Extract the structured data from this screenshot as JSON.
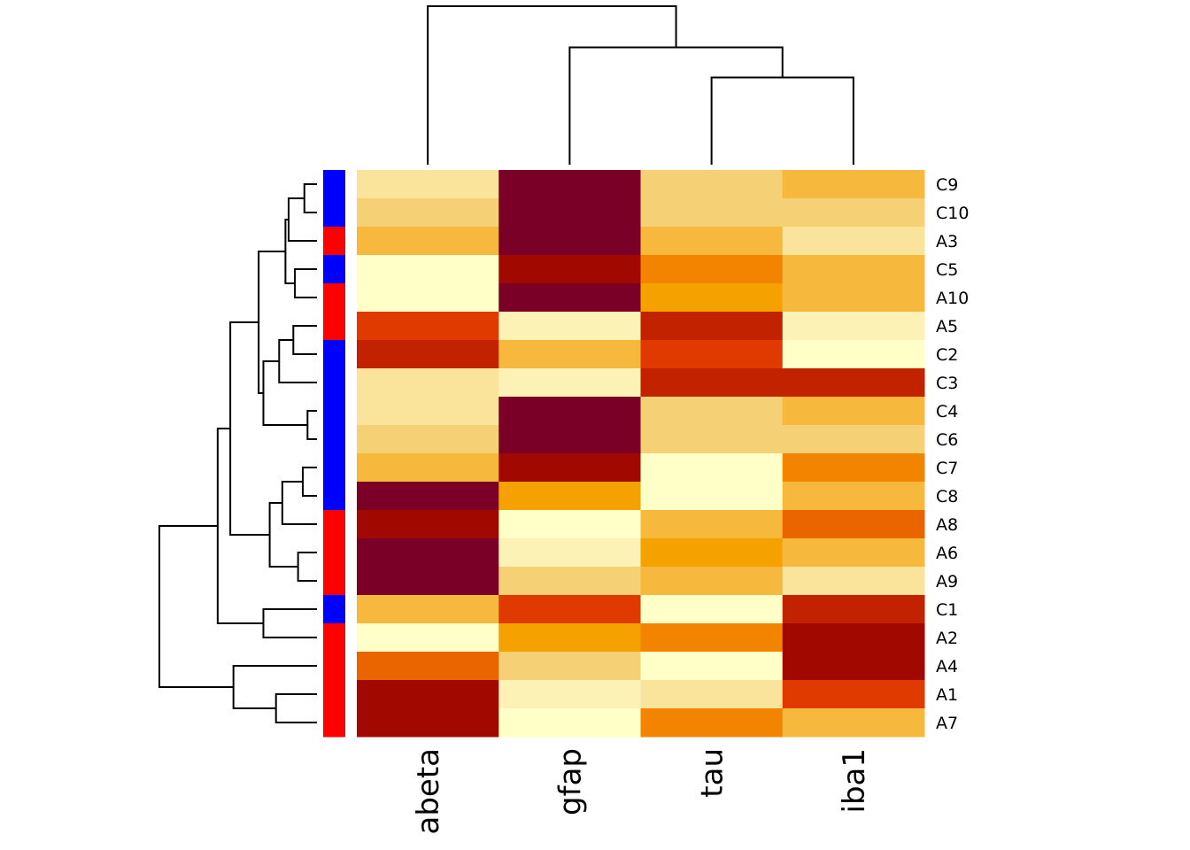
{
  "chart_data": {
    "type": "heatmap",
    "title": "",
    "palette_name": "heat colors (dark red = low level index, light yellow = high level index)",
    "palette": [
      "#7B0028",
      "#A00800",
      "#C22200",
      "#E03A00",
      "#EA6400",
      "#F28400",
      "#F5A200",
      "#F6B83D",
      "#F6D075",
      "#FAE39A",
      "#FDF2B5",
      "#FFFFC8"
    ],
    "columns": [
      "abeta",
      "gfap",
      "tau",
      "iba1"
    ],
    "rows": [
      "C9",
      "C10",
      "A3",
      "C5",
      "A10",
      "A5",
      "C2",
      "C3",
      "C4",
      "C6",
      "C7",
      "C8",
      "A8",
      "A6",
      "A9",
      "C1",
      "A2",
      "A4",
      "A1",
      "A7"
    ],
    "row_groups": [
      "C",
      "C",
      "A",
      "C",
      "A",
      "A",
      "C",
      "C",
      "C",
      "C",
      "C",
      "C",
      "A",
      "A",
      "A",
      "C",
      "A",
      "A",
      "A",
      "A"
    ],
    "group_colors": {
      "C": "#0000FF",
      "A": "#FF0000"
    },
    "values_level": [
      [
        10,
        1,
        9,
        8
      ],
      [
        9,
        1,
        9,
        9
      ],
      [
        8,
        1,
        8,
        10
      ],
      [
        12,
        2,
        6,
        8
      ],
      [
        12,
        1,
        7,
        8
      ],
      [
        4,
        11,
        3,
        11
      ],
      [
        3,
        8,
        4,
        12
      ],
      [
        10,
        11,
        3,
        3
      ],
      [
        10,
        1,
        9,
        8
      ],
      [
        9,
        1,
        9,
        9
      ],
      [
        8,
        2,
        12,
        6
      ],
      [
        1,
        7,
        12,
        8
      ],
      [
        2,
        12,
        8,
        5
      ],
      [
        1,
        11,
        7,
        8
      ],
      [
        1,
        9,
        8,
        10
      ],
      [
        8,
        4,
        12,
        3
      ],
      [
        12,
        7,
        6,
        2
      ],
      [
        5,
        9,
        12,
        2
      ],
      [
        2,
        11,
        10,
        4
      ],
      [
        2,
        12,
        6,
        8
      ]
    ],
    "col_dendrogram": {
      "merges": [
        {
          "left": "tau",
          "right": "iba1",
          "height": 0.55
        },
        {
          "left": "gfap",
          "right": [
            "tau",
            "iba1"
          ],
          "height": 0.74
        },
        {
          "left": "abeta",
          "right": [
            "gfap",
            "tau",
            "iba1"
          ],
          "height": 1.0
        }
      ]
    },
    "row_dendrogram": {
      "merges": [
        {
          "members": [
            "C9",
            "C10"
          ],
          "height": 0.08
        },
        {
          "members": [
            "C9",
            "C10",
            "A3"
          ],
          "height": 0.18
        },
        {
          "members": [
            "C5",
            "A10"
          ],
          "height": 0.14
        },
        {
          "members": [
            "C9",
            "C10",
            "A3",
            "C5",
            "A10"
          ],
          "height": 0.2
        },
        {
          "members": [
            "A5",
            "C2"
          ],
          "height": 0.15
        },
        {
          "members": [
            "A5",
            "C2",
            "C3"
          ],
          "height": 0.24
        },
        {
          "members": [
            "C4",
            "C6"
          ],
          "height": 0.06
        },
        {
          "members": [
            "A5",
            "C2",
            "C3",
            "C4",
            "C6"
          ],
          "height": 0.34
        },
        {
          "members": [
            "C9",
            "C10",
            "A3",
            "C5",
            "A10",
            "A5",
            "C2",
            "C3",
            "C4",
            "C6"
          ],
          "height": 0.37
        },
        {
          "members": [
            "C7",
            "C8"
          ],
          "height": 0.09
        },
        {
          "members": [
            "C7",
            "C8",
            "A8"
          ],
          "height": 0.22
        },
        {
          "members": [
            "A6",
            "A9"
          ],
          "height": 0.12
        },
        {
          "members": [
            "C7",
            "C8",
            "A8",
            "A6",
            "A9"
          ],
          "height": 0.3
        },
        {
          "members": [
            "C9",
            "C10",
            "A3",
            "C5",
            "A10",
            "A5",
            "C2",
            "C3",
            "C4",
            "C6",
            "C7",
            "C8",
            "A8",
            "A6",
            "A9"
          ],
          "height": 0.55
        },
        {
          "members": [
            "C1",
            "A2"
          ],
          "height": 0.34
        },
        {
          "members": [
            "C9",
            "C10",
            "A3",
            "C5",
            "A10",
            "A5",
            "C2",
            "C3",
            "C4",
            "C6",
            "C7",
            "C8",
            "A8",
            "A6",
            "A9",
            "C1",
            "A2"
          ],
          "height": 0.63
        },
        {
          "members": [
            "A1",
            "A7"
          ],
          "height": 0.26
        },
        {
          "members": [
            "A4",
            "A1",
            "A7"
          ],
          "height": 0.53
        },
        {
          "members": [
            "C9",
            "C10",
            "A3",
            "C5",
            "A10",
            "A5",
            "C2",
            "C3",
            "C4",
            "C6",
            "C7",
            "C8",
            "A8",
            "A6",
            "A9",
            "C1",
            "A2",
            "A4",
            "A1",
            "A7"
          ],
          "height": 1.0
        }
      ]
    },
    "legend": "none",
    "grid": false
  }
}
